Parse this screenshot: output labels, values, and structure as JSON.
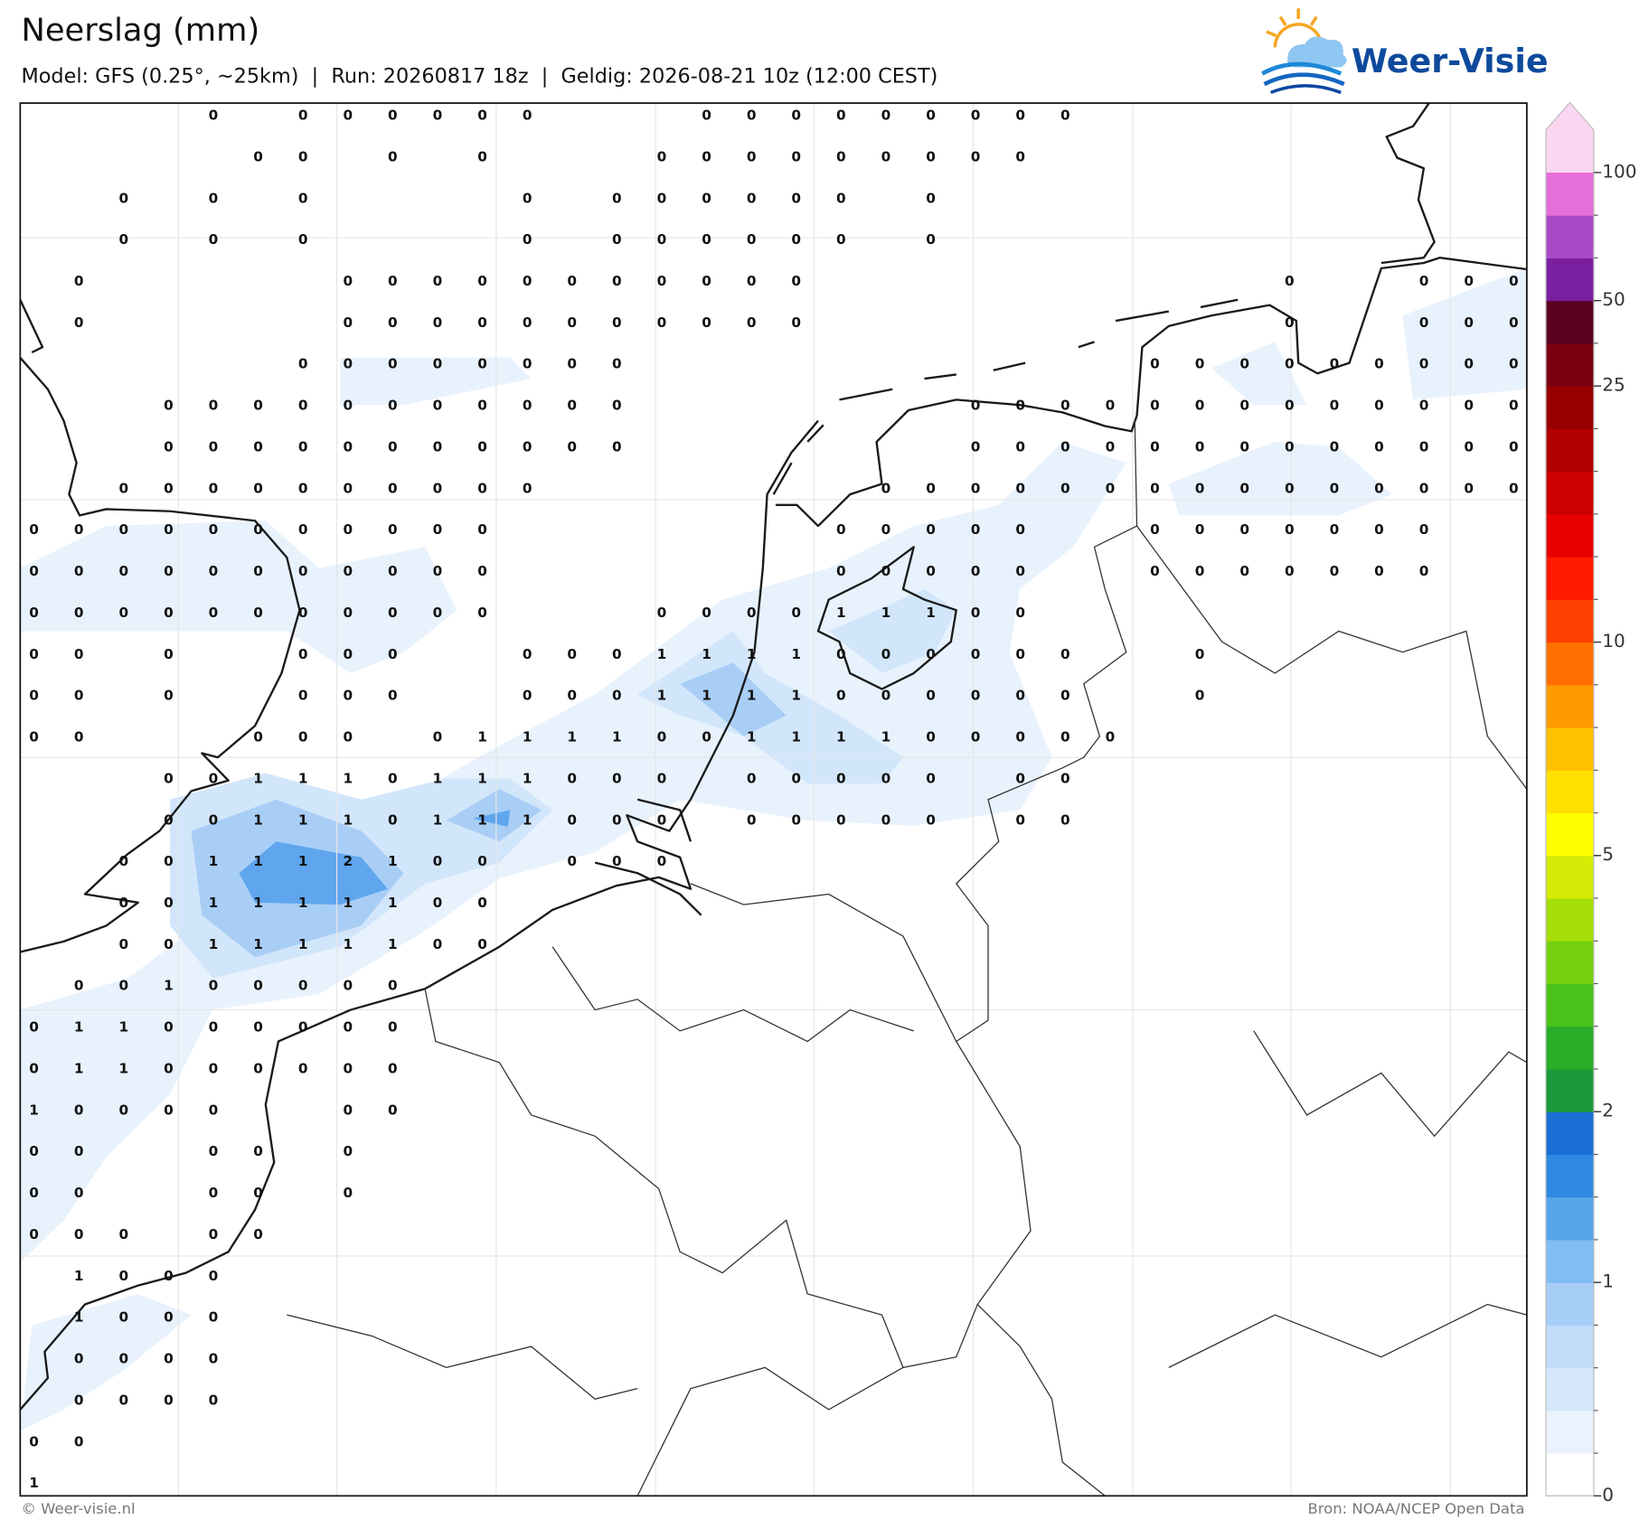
{
  "header": {
    "title": "Neerslag (mm)",
    "subtitle": "Model: GFS (0.25°, ~25km)  |  Run: 20260817 18z  |  Geldig: 2026-08-21 10z (12:00 CEST)"
  },
  "logo": {
    "text": "Weer-Visie"
  },
  "grid": {
    "rows": [
      [
        null,
        null,
        null,
        null,
        0,
        null,
        0,
        0,
        0,
        0,
        0,
        0,
        null,
        null,
        null,
        0,
        0,
        0,
        0,
        0,
        0,
        0,
        0,
        0,
        null,
        null,
        null,
        null,
        null,
        null,
        null,
        null,
        null,
        null
      ],
      [
        null,
        null,
        null,
        null,
        null,
        0,
        0,
        null,
        0,
        null,
        0,
        null,
        null,
        null,
        0,
        0,
        0,
        0,
        0,
        0,
        0,
        0,
        0,
        null,
        null,
        null,
        null,
        null,
        null,
        null,
        null,
        null,
        null,
        null
      ],
      [
        null,
        null,
        0,
        null,
        0,
        null,
        0,
        null,
        null,
        null,
        null,
        0,
        null,
        0,
        0,
        0,
        0,
        0,
        0,
        null,
        0,
        null,
        null,
        null,
        null,
        null,
        null,
        null,
        null,
        null,
        null,
        null,
        null,
        null
      ],
      [
        null,
        null,
        0,
        null,
        0,
        null,
        0,
        null,
        null,
        null,
        null,
        0,
        null,
        0,
        0,
        0,
        0,
        0,
        0,
        null,
        0,
        null,
        null,
        null,
        null,
        null,
        null,
        null,
        null,
        null,
        null,
        null,
        null,
        null
      ],
      [
        null,
        0,
        null,
        null,
        null,
        null,
        null,
        0,
        0,
        0,
        0,
        0,
        0,
        0,
        0,
        0,
        0,
        0,
        null,
        null,
        null,
        null,
        null,
        null,
        null,
        null,
        null,
        null,
        0,
        null,
        null,
        0,
        0,
        0
      ],
      [
        null,
        0,
        null,
        null,
        null,
        null,
        null,
        0,
        0,
        0,
        0,
        0,
        0,
        0,
        0,
        0,
        0,
        0,
        null,
        null,
        null,
        null,
        null,
        null,
        null,
        null,
        null,
        null,
        0,
        null,
        null,
        0,
        0,
        0
      ],
      [
        null,
        null,
        null,
        null,
        null,
        null,
        0,
        0,
        0,
        0,
        0,
        0,
        0,
        0,
        null,
        null,
        null,
        null,
        null,
        null,
        null,
        null,
        null,
        null,
        null,
        0,
        0,
        0,
        0,
        0,
        0,
        0,
        0,
        0
      ],
      [
        null,
        null,
        null,
        0,
        0,
        0,
        0,
        0,
        0,
        0,
        0,
        0,
        0,
        0,
        null,
        null,
        null,
        null,
        null,
        null,
        null,
        0,
        0,
        0,
        0,
        0,
        0,
        0,
        0,
        0,
        0,
        0,
        0,
        0
      ],
      [
        null,
        null,
        null,
        0,
        0,
        0,
        0,
        0,
        0,
        0,
        0,
        0,
        0,
        0,
        null,
        null,
        null,
        null,
        null,
        null,
        null,
        0,
        0,
        0,
        0,
        0,
        0,
        0,
        0,
        0,
        0,
        0,
        0,
        0
      ],
      [
        null,
        null,
        0,
        0,
        0,
        0,
        0,
        0,
        0,
        0,
        0,
        0,
        null,
        null,
        null,
        null,
        null,
        null,
        null,
        0,
        0,
        0,
        0,
        0,
        0,
        0,
        0,
        0,
        0,
        0,
        0,
        0,
        0,
        0
      ],
      [
        0,
        0,
        0,
        0,
        0,
        0,
        0,
        0,
        0,
        0,
        0,
        null,
        null,
        null,
        null,
        null,
        null,
        null,
        0,
        0,
        0,
        0,
        0,
        null,
        null,
        0,
        0,
        0,
        0,
        0,
        0,
        0,
        null,
        null
      ],
      [
        0,
        0,
        0,
        0,
        0,
        0,
        0,
        0,
        0,
        0,
        0,
        null,
        null,
        null,
        null,
        null,
        null,
        null,
        0,
        0,
        0,
        0,
        0,
        null,
        null,
        0,
        0,
        0,
        0,
        0,
        0,
        0,
        null,
        null
      ],
      [
        0,
        0,
        0,
        0,
        0,
        0,
        0,
        0,
        0,
        0,
        0,
        null,
        null,
        null,
        0,
        0,
        0,
        0,
        1,
        1,
        1,
        0,
        0,
        null,
        null,
        null,
        null,
        null,
        null,
        null,
        null,
        null,
        null,
        null
      ],
      [
        0,
        0,
        null,
        0,
        null,
        null,
        0,
        0,
        0,
        null,
        null,
        0,
        0,
        0,
        1,
        1,
        1,
        1,
        0,
        0,
        0,
        0,
        0,
        0,
        null,
        null,
        0,
        null,
        null,
        null,
        null,
        null,
        null,
        null
      ],
      [
        0,
        0,
        null,
        0,
        null,
        null,
        0,
        0,
        0,
        null,
        null,
        0,
        0,
        0,
        1,
        1,
        1,
        1,
        0,
        0,
        0,
        0,
        0,
        0,
        null,
        null,
        0,
        null,
        null,
        null,
        null,
        null,
        null,
        null
      ],
      [
        0,
        0,
        null,
        null,
        null,
        0,
        0,
        0,
        null,
        0,
        1,
        1,
        1,
        1,
        0,
        0,
        1,
        1,
        1,
        1,
        0,
        0,
        0,
        0,
        0,
        null,
        null,
        null,
        null,
        null,
        null,
        null,
        null,
        null
      ],
      [
        null,
        null,
        null,
        0,
        0,
        1,
        1,
        1,
        0,
        1,
        1,
        1,
        0,
        0,
        0,
        null,
        0,
        0,
        0,
        0,
        0,
        null,
        0,
        0,
        null,
        null,
        null,
        null,
        null,
        null,
        null,
        null,
        null,
        null
      ],
      [
        null,
        null,
        null,
        0,
        0,
        1,
        1,
        1,
        0,
        1,
        1,
        1,
        0,
        0,
        0,
        null,
        0,
        0,
        0,
        0,
        0,
        null,
        0,
        0,
        null,
        null,
        null,
        null,
        null,
        null,
        null,
        null,
        null,
        null
      ],
      [
        null,
        null,
        0,
        0,
        1,
        1,
        1,
        2,
        1,
        0,
        0,
        null,
        0,
        0,
        0,
        null,
        null,
        null,
        null,
        null,
        null,
        null,
        null,
        null,
        null,
        null,
        null,
        null,
        null,
        null,
        null,
        null,
        null,
        null
      ],
      [
        null,
        null,
        0,
        0,
        1,
        1,
        1,
        1,
        1,
        0,
        0,
        null,
        null,
        null,
        null,
        null,
        null,
        null,
        null,
        null,
        null,
        null,
        null,
        null,
        null,
        null,
        null,
        null,
        null,
        null,
        null,
        null,
        null,
        null
      ],
      [
        null,
        null,
        0,
        0,
        1,
        1,
        1,
        1,
        1,
        0,
        0,
        null,
        null,
        null,
        null,
        null,
        null,
        null,
        null,
        null,
        null,
        null,
        null,
        null,
        null,
        null,
        null,
        null,
        null,
        null,
        null,
        null,
        null,
        null
      ],
      [
        null,
        0,
        0,
        1,
        0,
        0,
        0,
        0,
        0,
        null,
        null,
        null,
        null,
        null,
        null,
        null,
        null,
        null,
        null,
        null,
        null,
        null,
        null,
        null,
        null,
        null,
        null,
        null,
        null,
        null,
        null,
        null,
        null,
        null
      ],
      [
        0,
        1,
        1,
        0,
        0,
        0,
        0,
        0,
        0,
        null,
        null,
        null,
        null,
        null,
        null,
        null,
        null,
        null,
        null,
        null,
        null,
        null,
        null,
        null,
        null,
        null,
        null,
        null,
        null,
        null,
        null,
        null,
        null,
        null
      ],
      [
        0,
        1,
        1,
        0,
        0,
        0,
        0,
        0,
        0,
        null,
        null,
        null,
        null,
        null,
        null,
        null,
        null,
        null,
        null,
        null,
        null,
        null,
        null,
        null,
        null,
        null,
        null,
        null,
        null,
        null,
        null,
        null,
        null,
        null
      ],
      [
        1,
        0,
        0,
        0,
        0,
        null,
        null,
        0,
        0,
        null,
        null,
        null,
        null,
        null,
        null,
        null,
        null,
        null,
        null,
        null,
        null,
        null,
        null,
        null,
        null,
        null,
        null,
        null,
        null,
        null,
        null,
        null,
        null,
        null
      ],
      [
        0,
        0,
        null,
        null,
        0,
        0,
        null,
        0,
        null,
        null,
        null,
        null,
        null,
        null,
        null,
        null,
        null,
        null,
        null,
        null,
        null,
        null,
        null,
        null,
        null,
        null,
        null,
        null,
        null,
        null,
        null,
        null,
        null,
        null
      ],
      [
        0,
        0,
        null,
        null,
        0,
        0,
        null,
        0,
        null,
        null,
        null,
        null,
        null,
        null,
        null,
        null,
        null,
        null,
        null,
        null,
        null,
        null,
        null,
        null,
        null,
        null,
        null,
        null,
        null,
        null,
        null,
        null,
        null,
        null
      ],
      [
        0,
        0,
        0,
        null,
        0,
        0,
        null,
        null,
        null,
        null,
        null,
        null,
        null,
        null,
        null,
        null,
        null,
        null,
        null,
        null,
        null,
        null,
        null,
        null,
        null,
        null,
        null,
        null,
        null,
        null,
        null,
        null,
        null,
        null
      ],
      [
        null,
        1,
        0,
        0,
        0,
        null,
        null,
        null,
        null,
        null,
        null,
        null,
        null,
        null,
        null,
        null,
        null,
        null,
        null,
        null,
        null,
        null,
        null,
        null,
        null,
        null,
        null,
        null,
        null,
        null,
        null,
        null,
        null,
        null
      ],
      [
        null,
        1,
        0,
        0,
        0,
        null,
        null,
        null,
        null,
        null,
        null,
        null,
        null,
        null,
        null,
        null,
        null,
        null,
        null,
        null,
        null,
        null,
        null,
        null,
        null,
        null,
        null,
        null,
        null,
        null,
        null,
        null,
        null,
        null
      ],
      [
        null,
        0,
        0,
        0,
        0,
        null,
        null,
        null,
        null,
        null,
        null,
        null,
        null,
        null,
        null,
        null,
        null,
        null,
        null,
        null,
        null,
        null,
        null,
        null,
        null,
        null,
        null,
        null,
        null,
        null,
        null,
        null,
        null,
        null
      ],
      [
        null,
        0,
        0,
        0,
        0,
        null,
        null,
        null,
        null,
        null,
        null,
        null,
        null,
        null,
        null,
        null,
        null,
        null,
        null,
        null,
        null,
        null,
        null,
        null,
        null,
        null,
        null,
        null,
        null,
        null,
        null,
        null,
        null,
        null
      ],
      [
        0,
        0,
        null,
        null,
        null,
        null,
        null,
        null,
        null,
        null,
        null,
        null,
        null,
        null,
        null,
        null,
        null,
        null,
        null,
        null,
        null,
        null,
        null,
        null,
        null,
        null,
        null,
        null,
        null,
        null,
        null,
        null,
        null,
        null
      ],
      [
        1,
        null,
        null,
        null,
        null,
        null,
        null,
        null,
        null,
        null,
        null,
        null,
        null,
        null,
        null,
        null,
        null,
        null,
        null,
        null,
        null,
        null,
        null,
        null,
        null,
        null,
        null,
        null,
        null,
        null,
        null,
        null,
        null,
        null
      ]
    ]
  },
  "colorbar": {
    "colors": [
      "#ffffff",
      "#eaf3fd",
      "#d4e7fb",
      "#bfdcf9",
      "#a6cef7",
      "#80bdf3",
      "#57a6ec",
      "#2e8ae2",
      "#1a6fd4",
      "#1a9a3a",
      "#27ad27",
      "#49c21a",
      "#74d00f",
      "#a6de0a",
      "#d4ec05",
      "#ffff00",
      "#ffe000",
      "#ffc000",
      "#ff9a00",
      "#ff7000",
      "#ff4000",
      "#ff1a00",
      "#e80000",
      "#cc0000",
      "#b00000",
      "#980000",
      "#7a0010",
      "#5a0020",
      "#7a1fa0",
      "#a94bc8",
      "#e56ed8"
    ],
    "extend_color": "#fbd6f0",
    "ticks": [
      0,
      1,
      2,
      5,
      10,
      25,
      50,
      100
    ]
  },
  "footer": {
    "credit": "© Weer-visie.nl",
    "source": "Bron: NOAA/NCEP Open Data"
  }
}
